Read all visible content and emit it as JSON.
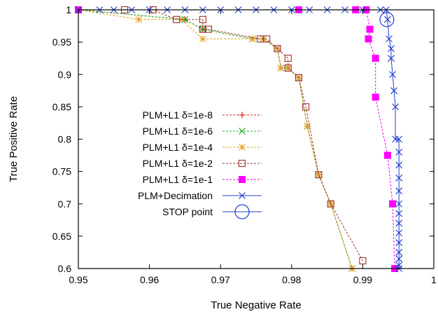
{
  "chart_data": {
    "type": "line",
    "title": "",
    "xlabel": "True Negative Rate",
    "ylabel": "True Positive Rate",
    "xlim": [
      0.95,
      1.0
    ],
    "ylim": [
      0.6,
      1.0
    ],
    "xticks": [
      0.95,
      0.96,
      0.97,
      0.98,
      0.99,
      1.0
    ],
    "xtick_labels": [
      "0.95",
      "0.96",
      "0.97",
      "0.98",
      "0.99",
      "1"
    ],
    "yticks": [
      0.6,
      0.65,
      0.7,
      0.75,
      0.8,
      0.85,
      0.9,
      0.95,
      1.0
    ],
    "ytick_labels": [
      "0.6",
      "0.65",
      "0.7",
      "0.75",
      "0.8",
      "0.85",
      "0.9",
      "0.95",
      "1"
    ],
    "grid": false,
    "legend_position": "center-left",
    "series": [
      {
        "name": "PLM+L1 δ=1e-8",
        "color": "#d62020",
        "marker": "plus",
        "x": [
          0.95,
          0.965,
          0.9675,
          0.9745,
          0.976,
          0.978,
          0.9785,
          0.9795,
          0.981,
          0.9822,
          0.9838,
          0.9855,
          0.9885
        ],
        "y": [
          1.0,
          0.985,
          0.97,
          0.955,
          0.955,
          0.94,
          0.91,
          0.91,
          0.895,
          0.82,
          0.745,
          0.7,
          0.6
        ]
      },
      {
        "name": "PLM+L1 δ=1e-6",
        "color": "#20b020",
        "marker": "x",
        "x": [
          0.95,
          0.965,
          0.9675,
          0.9745,
          0.976,
          0.978,
          0.9785,
          0.9795,
          0.981,
          0.9822,
          0.9838,
          0.9855,
          0.9885
        ],
        "y": [
          1.0,
          0.985,
          0.97,
          0.955,
          0.955,
          0.94,
          0.91,
          0.91,
          0.895,
          0.82,
          0.745,
          0.7,
          0.6
        ]
      },
      {
        "name": "PLM+L1 δ=1e-4",
        "color": "#e0a020",
        "marker": "star",
        "x": [
          0.95,
          0.9585,
          0.9645,
          0.9675,
          0.9745,
          0.976,
          0.978,
          0.9785,
          0.9795,
          0.981,
          0.9822,
          0.9838,
          0.9855,
          0.9885
        ],
        "y": [
          1.0,
          0.985,
          0.985,
          0.955,
          0.955,
          0.955,
          0.94,
          0.91,
          0.91,
          0.895,
          0.82,
          0.745,
          0.7,
          0.6
        ]
      },
      {
        "name": "PLM+L1 δ=1e-2",
        "color": "#a03030",
        "marker": "square-open",
        "x": [
          0.95,
          0.9565,
          0.9605,
          0.9638,
          0.9675,
          0.9675,
          0.9683,
          0.9756,
          0.9765,
          0.978,
          0.9795,
          0.9795,
          0.981,
          0.982,
          0.9838,
          0.9855,
          0.99
        ],
        "y": [
          1.0,
          1.0,
          1.0,
          0.985,
          0.985,
          0.97,
          0.97,
          0.955,
          0.955,
          0.94,
          0.925,
          0.91,
          0.895,
          0.85,
          0.745,
          0.7,
          0.612
        ]
      },
      {
        "name": "PLM+L1 δ=1e-1",
        "color": "#ff00ff",
        "marker": "square-filled",
        "x": [
          0.95,
          0.981,
          0.989,
          0.9905,
          0.991,
          0.9908,
          0.9918,
          0.9918,
          0.9935,
          0.9942,
          0.9945
        ],
        "y": [
          1.0,
          1.0,
          1.0,
          1.0,
          0.97,
          0.955,
          0.925,
          0.865,
          0.775,
          0.7,
          0.6
        ]
      },
      {
        "name": "PLM+Decimation",
        "color": "#2040d0",
        "marker": "x",
        "x": [
          0.95,
          0.953,
          0.955,
          0.9575,
          0.96,
          0.9625,
          0.965,
          0.9675,
          0.97,
          0.9725,
          0.975,
          0.9775,
          0.98,
          0.9825,
          0.985,
          0.9875,
          0.99,
          0.9925,
          0.9933,
          0.9935,
          0.9937,
          0.994,
          0.994,
          0.9942,
          0.9944,
          0.9946,
          0.9946,
          0.9951,
          0.9951,
          0.9951,
          0.9951,
          0.9951,
          0.9951,
          0.9951,
          0.9951,
          0.9951,
          0.9951,
          0.9951,
          0.9951,
          0.9951,
          0.9951
        ],
        "y": [
          1.0,
          1.0,
          1.0,
          1.0,
          1.0,
          1.0,
          1.0,
          1.0,
          1.0,
          1.0,
          1.0,
          1.0,
          1.0,
          1.0,
          1.0,
          1.0,
          1.0,
          1.0,
          1.0,
          0.985,
          0.955,
          0.94,
          0.925,
          0.9,
          0.875,
          0.85,
          0.8,
          0.8,
          0.78,
          0.76,
          0.74,
          0.72,
          0.7,
          0.685,
          0.67,
          0.655,
          0.64,
          0.625,
          0.615,
          0.605,
          0.6
        ]
      },
      {
        "name": "STOP point",
        "color": "#2040d0",
        "marker": "circle-large",
        "x": [
          0.9934
        ],
        "y": [
          0.985
        ]
      }
    ]
  }
}
